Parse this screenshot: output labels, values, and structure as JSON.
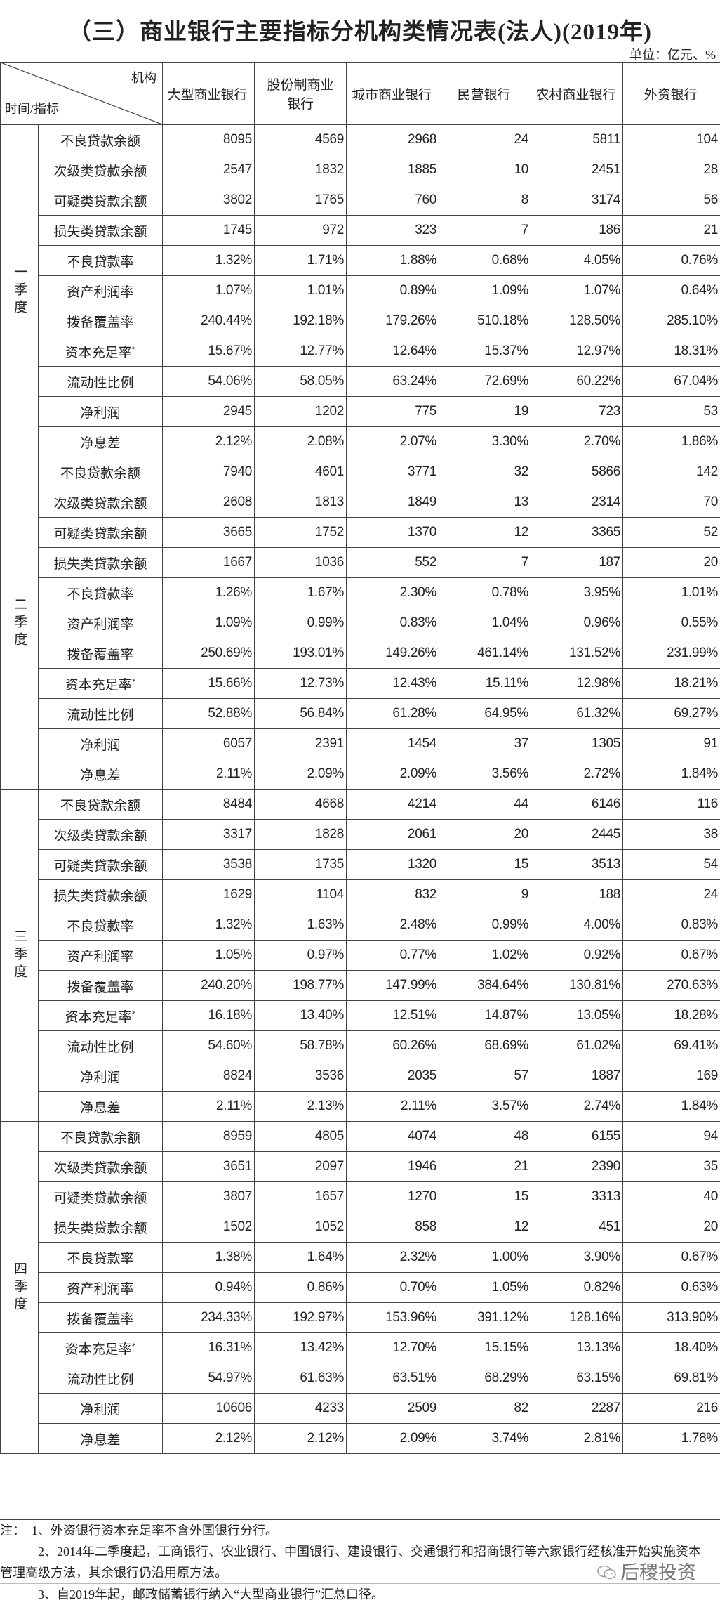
{
  "title": "（三）商业银行主要指标分机构类情况表(法人)(2019年)",
  "unit": "单位：亿元、%",
  "header": {
    "corner_top": "机构",
    "corner_bottom": "时间/指标",
    "columns": [
      "大型商业银行",
      "股份制商业银行",
      "城市商业银行",
      "民营银行",
      "农村商业银行",
      "外资银行"
    ]
  },
  "indicators": [
    "不良贷款余额",
    "次级类贷款余额",
    "可疑类贷款余额",
    "损失类贷款余额",
    "不良贷款率",
    "资产利润率",
    "拨备覆盖率",
    "资本充足率",
    "流动性比例",
    "净利润",
    "净息差"
  ],
  "footnote_mark": "*",
  "quarters": [
    {
      "label": "一季度",
      "rows": [
        [
          "8095",
          "4569",
          "2968",
          "24",
          "5811",
          "104"
        ],
        [
          "2547",
          "1832",
          "1885",
          "10",
          "2451",
          "28"
        ],
        [
          "3802",
          "1765",
          "760",
          "8",
          "3174",
          "56"
        ],
        [
          "1745",
          "972",
          "323",
          "7",
          "186",
          "21"
        ],
        [
          "1.32%",
          "1.71%",
          "1.88%",
          "0.68%",
          "4.05%",
          "0.76%"
        ],
        [
          "1.07%",
          "1.01%",
          "0.89%",
          "1.09%",
          "1.07%",
          "0.64%"
        ],
        [
          "240.44%",
          "192.18%",
          "179.26%",
          "510.18%",
          "128.50%",
          "285.10%"
        ],
        [
          "15.67%",
          "12.77%",
          "12.64%",
          "15.37%",
          "12.97%",
          "18.31%"
        ],
        [
          "54.06%",
          "58.05%",
          "63.24%",
          "72.69%",
          "60.22%",
          "67.04%"
        ],
        [
          "2945",
          "1202",
          "775",
          "19",
          "723",
          "53"
        ],
        [
          "2.12%",
          "2.08%",
          "2.07%",
          "3.30%",
          "2.70%",
          "1.86%"
        ]
      ]
    },
    {
      "label": "二季度",
      "rows": [
        [
          "7940",
          "4601",
          "3771",
          "32",
          "5866",
          "142"
        ],
        [
          "2608",
          "1813",
          "1849",
          "13",
          "2314",
          "70"
        ],
        [
          "3665",
          "1752",
          "1370",
          "12",
          "3365",
          "52"
        ],
        [
          "1667",
          "1036",
          "552",
          "7",
          "187",
          "20"
        ],
        [
          "1.26%",
          "1.67%",
          "2.30%",
          "0.78%",
          "3.95%",
          "1.01%"
        ],
        [
          "1.09%",
          "0.99%",
          "0.83%",
          "1.04%",
          "0.96%",
          "0.55%"
        ],
        [
          "250.69%",
          "193.01%",
          "149.26%",
          "461.14%",
          "131.52%",
          "231.99%"
        ],
        [
          "15.66%",
          "12.73%",
          "12.43%",
          "15.11%",
          "12.98%",
          "18.21%"
        ],
        [
          "52.88%",
          "56.84%",
          "61.28%",
          "64.95%",
          "61.32%",
          "69.27%"
        ],
        [
          "6057",
          "2391",
          "1454",
          "37",
          "1305",
          "91"
        ],
        [
          "2.11%",
          "2.09%",
          "2.09%",
          "3.56%",
          "2.72%",
          "1.84%"
        ]
      ]
    },
    {
      "label": "三季度",
      "rows": [
        [
          "8484",
          "4668",
          "4214",
          "44",
          "6146",
          "116"
        ],
        [
          "3317",
          "1828",
          "2061",
          "20",
          "2445",
          "38"
        ],
        [
          "3538",
          "1735",
          "1320",
          "15",
          "3513",
          "54"
        ],
        [
          "1629",
          "1104",
          "832",
          "9",
          "188",
          "24"
        ],
        [
          "1.32%",
          "1.63%",
          "2.48%",
          "0.99%",
          "4.00%",
          "0.83%"
        ],
        [
          "1.05%",
          "0.97%",
          "0.77%",
          "1.02%",
          "0.92%",
          "0.67%"
        ],
        [
          "240.20%",
          "198.77%",
          "147.99%",
          "384.64%",
          "130.81%",
          "270.63%"
        ],
        [
          "16.18%",
          "13.40%",
          "12.51%",
          "14.87%",
          "13.05%",
          "18.28%"
        ],
        [
          "54.60%",
          "58.78%",
          "60.26%",
          "68.69%",
          "61.02%",
          "69.41%"
        ],
        [
          "8824",
          "3536",
          "2035",
          "57",
          "1887",
          "169"
        ],
        [
          "2.11%",
          "2.13%",
          "2.11%",
          "3.57%",
          "2.74%",
          "1.84%"
        ]
      ]
    },
    {
      "label": "四季度",
      "rows": [
        [
          "8959",
          "4805",
          "4074",
          "48",
          "6155",
          "94"
        ],
        [
          "3651",
          "2097",
          "1946",
          "21",
          "2390",
          "35"
        ],
        [
          "3807",
          "1657",
          "1270",
          "15",
          "3313",
          "40"
        ],
        [
          "1502",
          "1052",
          "858",
          "12",
          "451",
          "20"
        ],
        [
          "1.38%",
          "1.64%",
          "2.32%",
          "1.00%",
          "3.90%",
          "0.67%"
        ],
        [
          "0.94%",
          "0.86%",
          "0.70%",
          "1.05%",
          "0.82%",
          "0.63%"
        ],
        [
          "234.33%",
          "192.97%",
          "153.96%",
          "391.12%",
          "128.16%",
          "313.90%"
        ],
        [
          "16.31%",
          "13.42%",
          "12.70%",
          "15.15%",
          "13.13%",
          "18.40%"
        ],
        [
          "54.97%",
          "61.63%",
          "63.51%",
          "68.29%",
          "63.15%",
          "69.81%"
        ],
        [
          "10606",
          "4233",
          "2509",
          "82",
          "2287",
          "216"
        ],
        [
          "2.12%",
          "2.12%",
          "2.09%",
          "3.74%",
          "2.81%",
          "1.78%"
        ]
      ]
    }
  ],
  "notes": {
    "line1": "注：　1、外资银行资本充足率不含外国银行分行。",
    "line2": "　　　2、2014年二季度起，工商银行、农业银行、中国银行、建设银行、交通银行和招商银行等六家银行经核准开始实施资本",
    "line2b": "管理高级方法，其余银行仍沿用原方法。",
    "line3": "　　　3、自2019年起，邮政储蓄银行纳入“大型商业银行”汇总口径。"
  },
  "watermark": "后稷投资"
}
